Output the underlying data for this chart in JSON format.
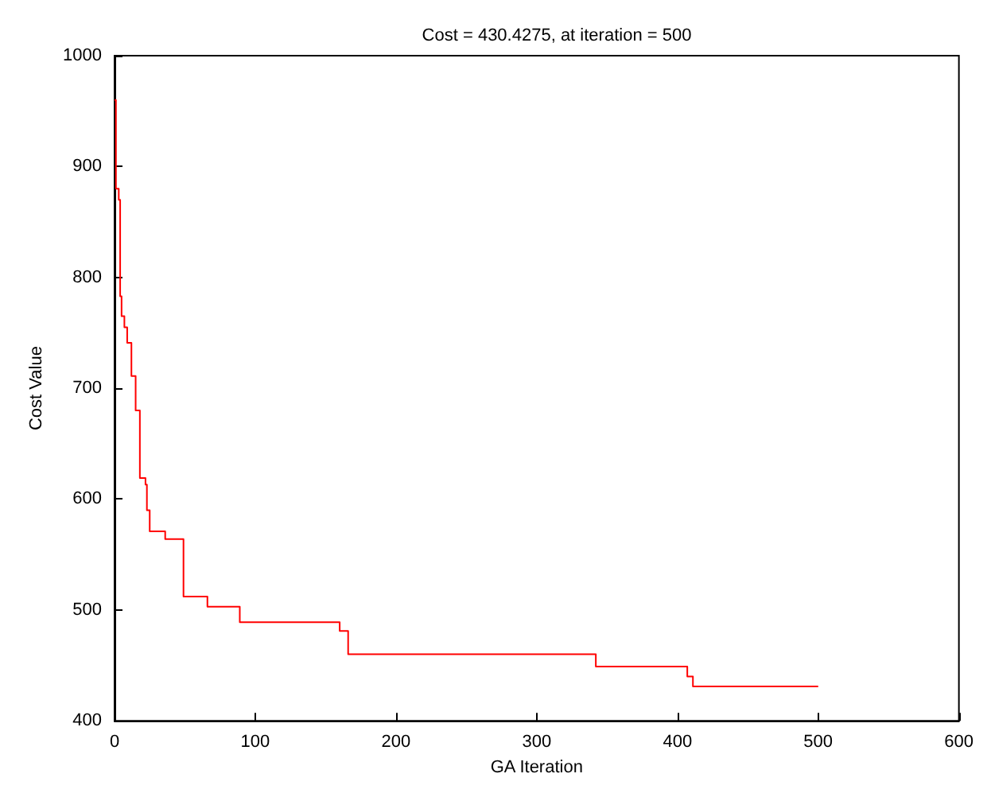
{
  "chart_data": {
    "type": "step",
    "title": "Cost = 430.4275, at iteration = 500",
    "xlabel": "GA Iteration",
    "ylabel": "Cost Value",
    "x": [
      0,
      1,
      3,
      4,
      5,
      7,
      9,
      12,
      15,
      18,
      22,
      23,
      25,
      36,
      49,
      66,
      89,
      160,
      166,
      342,
      407,
      411,
      500
    ],
    "series": [
      {
        "color": "#ff0000",
        "values": [
          960,
          880,
          870,
          783,
          765,
          755,
          741,
          711,
          680,
          619,
          613,
          590,
          571,
          564,
          512,
          503,
          489,
          481,
          460,
          449,
          440,
          431,
          430
        ]
      }
    ],
    "xlim": [
      0,
      600
    ],
    "xticks": [
      0,
      100,
      200,
      300,
      400,
      500,
      600
    ],
    "ylim": [
      400,
      1000
    ],
    "yticks": [
      400,
      500,
      600,
      700,
      800,
      900,
      1000
    ],
    "grid": false
  }
}
